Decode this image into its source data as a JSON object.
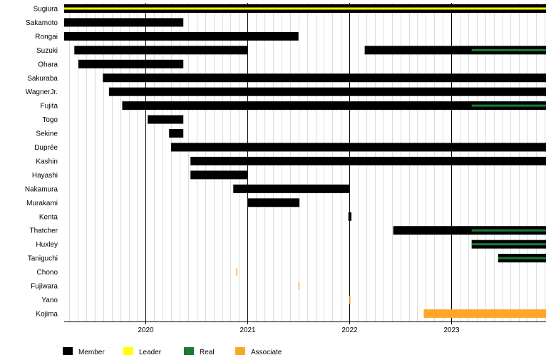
{
  "chart_data": {
    "type": "timeline",
    "x_range": [
      2019.2,
      2023.93
    ],
    "year_ticks": [
      2020,
      2021,
      2022,
      2023
    ],
    "grid": true,
    "legend_position": "bottom-left",
    "categories": {
      "member": {
        "label": "Member",
        "color": "#000000"
      },
      "leader": {
        "label": "Leader",
        "color": "#ffff00"
      },
      "real": {
        "label": "Real",
        "color": "#167c34"
      },
      "associate": {
        "label": "Associate",
        "color": "#ffa629"
      }
    },
    "members": [
      {
        "name": "Sugiura",
        "spans": [
          {
            "start": 2019.2,
            "end": 2023.93,
            "role": "member",
            "overlay": "leader"
          }
        ]
      },
      {
        "name": "Sakamoto",
        "spans": [
          {
            "start": 2019.2,
            "end": 2020.37,
            "role": "member"
          }
        ]
      },
      {
        "name": "Rongai",
        "spans": [
          {
            "start": 2019.2,
            "end": 2021.5,
            "role": "member"
          }
        ]
      },
      {
        "name": "Suzuki",
        "spans": [
          {
            "start": 2019.3,
            "end": 2021.0,
            "role": "member"
          },
          {
            "start": 2022.15,
            "end": 2023.93,
            "role": "member",
            "overlay": "real",
            "overlay_start": 2023.2
          }
        ]
      },
      {
        "name": "Ohara",
        "spans": [
          {
            "start": 2019.34,
            "end": 2020.37,
            "role": "member"
          }
        ]
      },
      {
        "name": "Sakuraba",
        "spans": [
          {
            "start": 2019.58,
            "end": 2023.93,
            "role": "member"
          }
        ]
      },
      {
        "name": "WagnerJr.",
        "spans": [
          {
            "start": 2019.64,
            "end": 2023.93,
            "role": "member"
          }
        ]
      },
      {
        "name": "Fujita",
        "spans": [
          {
            "start": 2019.77,
            "end": 2023.93,
            "role": "member",
            "overlay": "real",
            "overlay_start": 2023.2
          }
        ]
      },
      {
        "name": "Togo",
        "spans": [
          {
            "start": 2020.02,
            "end": 2020.37,
            "role": "member"
          }
        ]
      },
      {
        "name": "Sekine",
        "spans": [
          {
            "start": 2020.23,
            "end": 2020.37,
            "role": "member"
          }
        ]
      },
      {
        "name": "Duprée",
        "spans": [
          {
            "start": 2020.25,
            "end": 2023.93,
            "role": "member"
          }
        ]
      },
      {
        "name": "Kashin",
        "spans": [
          {
            "start": 2020.44,
            "end": 2023.93,
            "role": "member"
          }
        ]
      },
      {
        "name": "Hayashi",
        "spans": [
          {
            "start": 2020.44,
            "end": 2021.0,
            "role": "member"
          }
        ]
      },
      {
        "name": "Nakamura",
        "spans": [
          {
            "start": 2020.86,
            "end": 2022.0,
            "role": "member"
          }
        ]
      },
      {
        "name": "Murakami",
        "spans": [
          {
            "start": 2021.0,
            "end": 2021.51,
            "role": "member"
          }
        ]
      },
      {
        "name": "Kenta",
        "spans": [
          {
            "start": 2021.99,
            "end": 2022.02,
            "role": "member"
          }
        ]
      },
      {
        "name": "Thatcher",
        "spans": [
          {
            "start": 2022.43,
            "end": 2023.93,
            "role": "member",
            "overlay": "real",
            "overlay_start": 2023.2
          }
        ]
      },
      {
        "name": "Huxley",
        "spans": [
          {
            "start": 2023.2,
            "end": 2023.93,
            "role": "member",
            "overlay": "real",
            "overlay_start": 2023.2
          }
        ]
      },
      {
        "name": "Taniguchi",
        "spans": [
          {
            "start": 2023.46,
            "end": 2023.93,
            "role": "member",
            "overlay": "real",
            "overlay_start": 2023.46
          }
        ]
      },
      {
        "name": "Chono",
        "spans": [
          {
            "start": 2020.89,
            "end": 2020.9,
            "role": "associate"
          }
        ]
      },
      {
        "name": "Fujiwara",
        "spans": [
          {
            "start": 2021.5,
            "end": 2021.51,
            "role": "associate"
          }
        ]
      },
      {
        "name": "Yano",
        "spans": [
          {
            "start": 2022.0,
            "end": 2022.01,
            "role": "associate"
          }
        ]
      },
      {
        "name": "Kojima",
        "spans": [
          {
            "start": 2022.73,
            "end": 2023.93,
            "role": "associate"
          }
        ]
      }
    ]
  }
}
